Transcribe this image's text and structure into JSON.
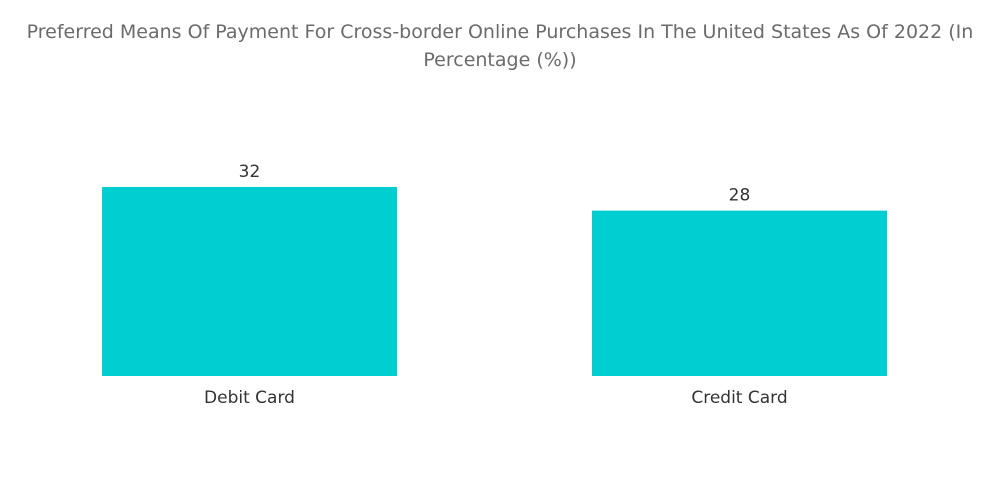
{
  "chart_data": {
    "type": "bar",
    "title": "Preferred Means Of Payment For Cross-border Online Purchases In The United States As Of 2022 (In Percentage (%))",
    "categories": [
      "Debit Card",
      "Credit Card"
    ],
    "values": [
      32,
      28
    ],
    "xlabel": "",
    "ylabel": "",
    "ylim": [
      0,
      32
    ],
    "grid": false,
    "bar_color": "#00CED1"
  }
}
